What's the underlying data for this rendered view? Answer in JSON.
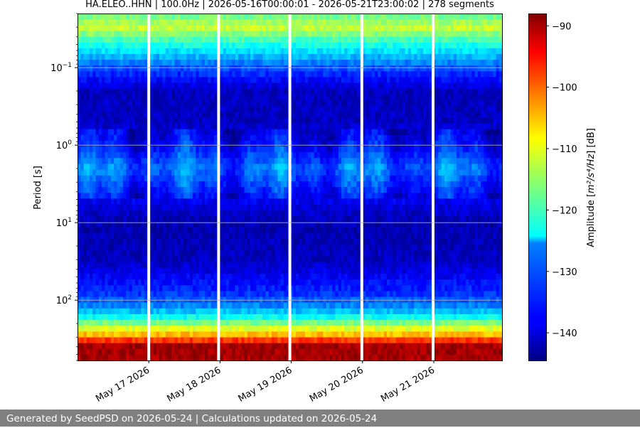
{
  "chart_data": {
    "type": "heatmap",
    "title": "HA.ELEO..HHN | 100.0Hz | 2026-05-16T00:00:01 - 2026-05-21T23:00:02 | 278 segments",
    "ylabel": "Period [s]",
    "y_scale": "log",
    "y_inverted": true,
    "ylim": [
      0.02,
      600
    ],
    "y_ticks": [
      {
        "value": 0.1,
        "base": "10",
        "exp": "−1"
      },
      {
        "value": 1,
        "base": "10",
        "exp": "0"
      },
      {
        "value": 10,
        "base": "10",
        "exp": "1"
      },
      {
        "value": 100,
        "base": "10",
        "exp": "2"
      }
    ],
    "x_range": [
      "2026-05-16T00:00:01",
      "2026-05-21T23:00:02"
    ],
    "x_ticks": [
      "May 17 2026",
      "May 18 2026",
      "May 19 2026",
      "May 20 2026",
      "May 21 2026"
    ],
    "x_tick_days": [
      1,
      2,
      3,
      4,
      5
    ],
    "x_span_days": 5.958,
    "gaps_days": [
      1.0,
      1.98,
      2.98,
      3.99,
      4.99
    ],
    "colorbar": {
      "label_prefix": "Amplitude [",
      "label_units": "m²/s⁴/Hz",
      "label_suffix": "] [dB]",
      "colormap": "jet",
      "range_db": [
        -144.5,
        -88
      ],
      "ticks": [
        "−90",
        "−100",
        "−110",
        "−120",
        "−130",
        "−140"
      ],
      "tick_values": [
        -90,
        -100,
        -110,
        -120,
        -130,
        -140
      ]
    },
    "amplitude_profile_by_period": [
      {
        "period": 0.02,
        "db": -118
      },
      {
        "period": 0.03,
        "db": -112
      },
      {
        "period": 0.05,
        "db": -122
      },
      {
        "period": 0.08,
        "db": -129
      },
      {
        "period": 0.1,
        "db": -133
      },
      {
        "period": 0.2,
        "db": -141
      },
      {
        "period": 0.5,
        "db": -141
      },
      {
        "period": 1,
        "db": -137
      },
      {
        "period": 2,
        "db": -131
      },
      {
        "period": 5,
        "db": -138
      },
      {
        "period": 10,
        "db": -142
      },
      {
        "period": 30,
        "db": -141
      },
      {
        "period": 80,
        "db": -135
      },
      {
        "period": 120,
        "db": -130
      },
      {
        "period": 160,
        "db": -124
      },
      {
        "period": 220,
        "db": -113
      },
      {
        "period": 300,
        "db": -103
      },
      {
        "period": 380,
        "db": -90
      }
    ],
    "grid": true
  },
  "footer": {
    "text": "Generated by SeedPSD on 2026-05-24 | Calculations updated on 2026-05-24"
  }
}
